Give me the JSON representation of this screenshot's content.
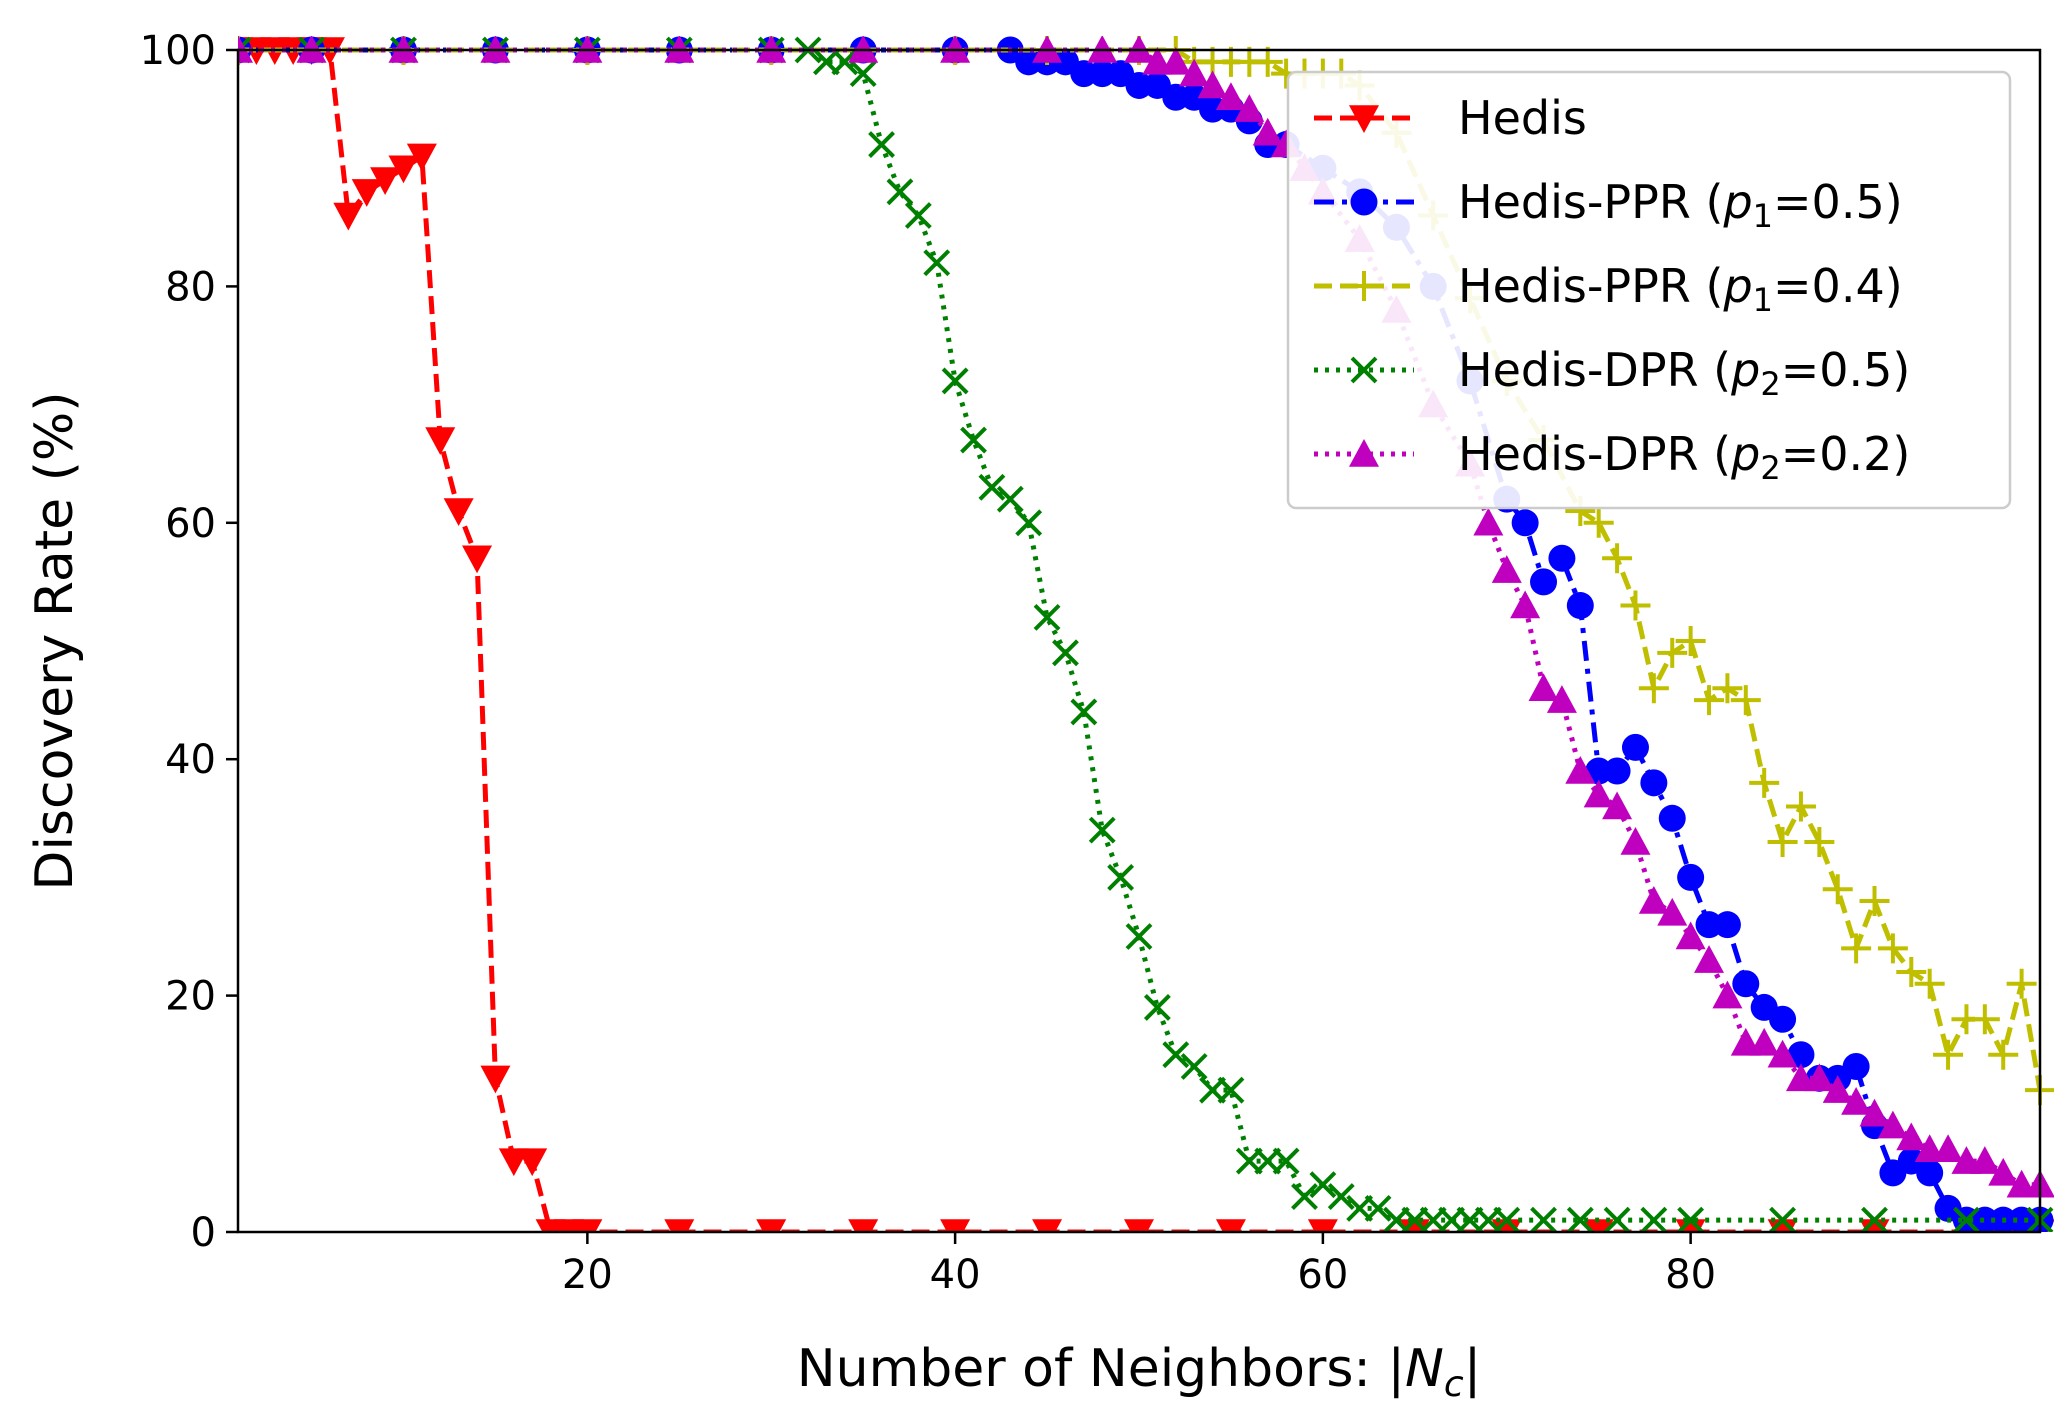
{
  "chart_data": {
    "type": "line",
    "title": "",
    "xlabel": "Number of Neighbors: |N_c|",
    "xlabel_parts": [
      "Number of Neighbors: |",
      "N",
      "c",
      "|"
    ],
    "ylabel": "Discovery Rate (%)",
    "xlim": [
      1,
      99
    ],
    "ylim": [
      0,
      100
    ],
    "xticks": [
      20,
      40,
      60,
      80
    ],
    "yticks": [
      0,
      20,
      40,
      60,
      80,
      100
    ],
    "grid": false,
    "legend_position": "top-right",
    "series": [
      {
        "name": "Hedis",
        "label_parts": {
          "pre": "Hedis",
          "var": "",
          "sub": "",
          "post": ""
        },
        "color": "#ff0000",
        "line": "dashed",
        "marker": "triangle-down",
        "x": [
          1,
          2,
          3,
          4,
          5,
          6,
          7,
          8,
          9,
          10,
          11,
          12,
          13,
          14,
          15,
          16,
          17,
          18,
          19,
          20,
          25,
          30,
          35,
          40,
          45,
          50,
          55,
          60,
          65,
          70,
          75,
          80,
          85,
          90,
          95,
          99
        ],
        "y": [
          100,
          100,
          100,
          100,
          100,
          100,
          86,
          88,
          89,
          90,
          91,
          67,
          61,
          57,
          13,
          6,
          6,
          0,
          0,
          0,
          0,
          0,
          0,
          0,
          0,
          0,
          0,
          0,
          0,
          0,
          0,
          0,
          0,
          0,
          0,
          0
        ]
      },
      {
        "name": "Hedis-PPR (p1=0.5)",
        "label_parts": {
          "pre": "Hedis-PPR (",
          "var": "p",
          "sub": "1",
          "post": "=0.5)"
        },
        "color": "#0000ff",
        "line": "dashdot",
        "marker": "circle",
        "x": [
          1,
          5,
          10,
          15,
          20,
          25,
          30,
          35,
          40,
          43,
          44,
          45,
          46,
          47,
          48,
          49,
          50,
          51,
          52,
          53,
          54,
          55,
          56,
          57,
          58,
          60,
          62,
          64,
          66,
          68,
          70,
          71,
          72,
          73,
          74,
          75,
          76,
          77,
          78,
          79,
          80,
          81,
          82,
          83,
          84,
          85,
          86,
          87,
          88,
          89,
          90,
          91,
          92,
          93,
          94,
          95,
          96,
          97,
          98,
          99
        ],
        "y": [
          100,
          100,
          100,
          100,
          100,
          100,
          100,
          100,
          100,
          100,
          99,
          99,
          99,
          98,
          98,
          98,
          97,
          97,
          96,
          96,
          95,
          95,
          94,
          92,
          92,
          90,
          88,
          85,
          80,
          72,
          62,
          60,
          55,
          57,
          53,
          39,
          39,
          41,
          38,
          35,
          30,
          26,
          26,
          21,
          19,
          18,
          15,
          13,
          13,
          14,
          9,
          5,
          6,
          5,
          2,
          1,
          1,
          1,
          1,
          1
        ]
      },
      {
        "name": "Hedis-PPR (p1=0.4)",
        "label_parts": {
          "pre": "Hedis-PPR (",
          "var": "p",
          "sub": "1",
          "post": "=0.4)"
        },
        "color": "#bfbf00",
        "line": "dashed",
        "marker": "plus",
        "x": [
          1,
          10,
          20,
          30,
          40,
          45,
          50,
          52,
          53,
          54,
          55,
          56,
          57,
          58,
          59,
          60,
          61,
          62,
          64,
          66,
          68,
          70,
          72,
          74,
          75,
          76,
          77,
          78,
          79,
          80,
          81,
          82,
          83,
          84,
          85,
          86,
          87,
          88,
          89,
          90,
          91,
          92,
          93,
          94,
          95,
          96,
          97,
          98,
          99
        ],
        "y": [
          100,
          100,
          100,
          100,
          100,
          100,
          100,
          100,
          99,
          99,
          99,
          99,
          99,
          98,
          98,
          98,
          98,
          97,
          93,
          86,
          79,
          72,
          67,
          61,
          60,
          57,
          53,
          46,
          49,
          50,
          45,
          46,
          45,
          38,
          33,
          36,
          33,
          29,
          24,
          28,
          24,
          22,
          21,
          15,
          18,
          18,
          15,
          21,
          12
        ]
      },
      {
        "name": "Hedis-DPR (p2=0.5)",
        "label_parts": {
          "pre": "Hedis-DPR (",
          "var": "p",
          "sub": "2",
          "post": "=0.5)"
        },
        "color": "#008000",
        "line": "dotted",
        "marker": "x",
        "x": [
          1,
          5,
          10,
          15,
          20,
          25,
          30,
          32,
          33,
          34,
          35,
          36,
          37,
          38,
          39,
          40,
          41,
          42,
          43,
          44,
          45,
          46,
          47,
          48,
          49,
          50,
          51,
          52,
          53,
          54,
          55,
          56,
          57,
          58,
          59,
          60,
          61,
          62,
          63,
          64,
          65,
          66,
          67,
          68,
          69,
          70,
          72,
          74,
          76,
          78,
          80,
          85,
          90,
          95,
          99
        ],
        "y": [
          100,
          100,
          100,
          100,
          100,
          100,
          100,
          100,
          99,
          99,
          98,
          92,
          88,
          86,
          82,
          72,
          67,
          63,
          62,
          60,
          52,
          49,
          44,
          34,
          30,
          25,
          19,
          15,
          14,
          12,
          12,
          6,
          6,
          6,
          3,
          4,
          3,
          2,
          2,
          1,
          1,
          1,
          1,
          1,
          1,
          1,
          1,
          1,
          1,
          1,
          1,
          1,
          1,
          1,
          1
        ]
      },
      {
        "name": "Hedis-DPR (p2=0.2)",
        "label_parts": {
          "pre": "Hedis-DPR (",
          "var": "p",
          "sub": "2",
          "post": "=0.2)"
        },
        "color": "#bf00bf",
        "line": "dotted",
        "marker": "triangle-up",
        "x": [
          1,
          5,
          10,
          15,
          20,
          25,
          30,
          35,
          40,
          45,
          48,
          50,
          51,
          52,
          53,
          54,
          55,
          56,
          57,
          58,
          59,
          60,
          62,
          64,
          66,
          68,
          69,
          70,
          71,
          72,
          73,
          74,
          75,
          76,
          77,
          78,
          79,
          80,
          81,
          82,
          83,
          84,
          85,
          86,
          87,
          88,
          89,
          90,
          91,
          92,
          93,
          94,
          95,
          96,
          97,
          98,
          99
        ],
        "y": [
          100,
          100,
          100,
          100,
          100,
          100,
          100,
          100,
          100,
          100,
          100,
          100,
          99,
          99,
          98,
          97,
          96,
          95,
          93,
          92,
          90,
          88,
          84,
          78,
          70,
          65,
          60,
          56,
          53,
          46,
          45,
          39,
          37,
          36,
          33,
          28,
          27,
          25,
          23,
          20,
          16,
          16,
          15,
          13,
          13,
          12,
          11,
          10,
          9,
          8,
          7,
          7,
          6,
          6,
          5,
          4,
          4
        ]
      }
    ]
  }
}
